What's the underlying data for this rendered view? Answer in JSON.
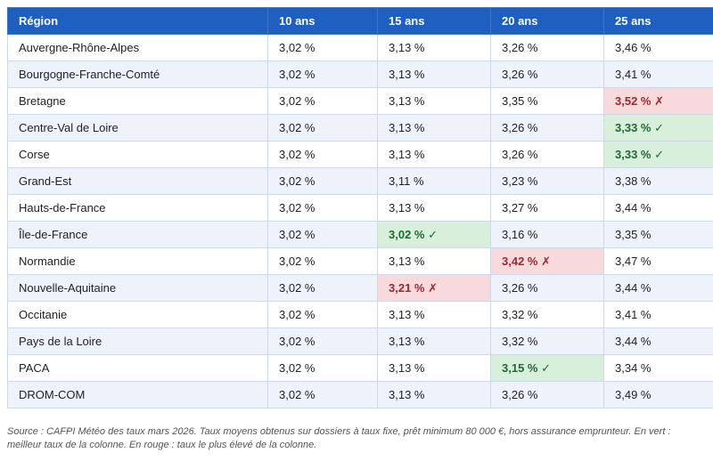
{
  "table": {
    "headers": [
      "Région",
      "10 ans",
      "15 ans",
      "20 ans",
      "25 ans"
    ],
    "rows": [
      {
        "region": "Auvergne-Rhône-Alpes",
        "cells": [
          {
            "value": "3,02 %"
          },
          {
            "value": "3,13 %"
          },
          {
            "value": "3,26 %"
          },
          {
            "value": "3,46 %"
          }
        ]
      },
      {
        "region": "Bourgogne-Franche-Comté",
        "cells": [
          {
            "value": "3,02 %"
          },
          {
            "value": "3,13 %"
          },
          {
            "value": "3,26 %"
          },
          {
            "value": "3,41 %"
          }
        ]
      },
      {
        "region": "Bretagne",
        "cells": [
          {
            "value": "3,02 %"
          },
          {
            "value": "3,13 %"
          },
          {
            "value": "3,35 %"
          },
          {
            "value": "3,52 % ✗",
            "status": "worst"
          }
        ]
      },
      {
        "region": "Centre-Val de Loire",
        "cells": [
          {
            "value": "3,02 %"
          },
          {
            "value": "3,13 %"
          },
          {
            "value": "3,26 %"
          },
          {
            "value": "3,33 % ✓",
            "status": "best"
          }
        ]
      },
      {
        "region": "Corse",
        "cells": [
          {
            "value": "3,02 %"
          },
          {
            "value": "3,13 %"
          },
          {
            "value": "3,26 %"
          },
          {
            "value": "3,33 % ✓",
            "status": "best"
          }
        ]
      },
      {
        "region": "Grand-Est",
        "cells": [
          {
            "value": "3,02 %"
          },
          {
            "value": "3,11 %"
          },
          {
            "value": "3,23 %"
          },
          {
            "value": "3,38 %"
          }
        ]
      },
      {
        "region": "Hauts-de-France",
        "cells": [
          {
            "value": "3,02 %"
          },
          {
            "value": "3,13 %"
          },
          {
            "value": "3,27 %"
          },
          {
            "value": "3,44 %"
          }
        ]
      },
      {
        "region": "Île-de-France",
        "cells": [
          {
            "value": "3,02 %"
          },
          {
            "value": "3,02 % ✓",
            "status": "best"
          },
          {
            "value": "3,16 %"
          },
          {
            "value": "3,35 %"
          }
        ]
      },
      {
        "region": "Normandie",
        "cells": [
          {
            "value": "3,02 %"
          },
          {
            "value": "3,13 %"
          },
          {
            "value": "3,42 % ✗",
            "status": "worst"
          },
          {
            "value": "3,47 %"
          }
        ]
      },
      {
        "region": "Nouvelle-Aquitaine",
        "cells": [
          {
            "value": "3,02 %"
          },
          {
            "value": "3,21 % ✗",
            "status": "worst"
          },
          {
            "value": "3,26 %"
          },
          {
            "value": "3,44 %"
          }
        ]
      },
      {
        "region": "Occitanie",
        "cells": [
          {
            "value": "3,02 %"
          },
          {
            "value": "3,13 %"
          },
          {
            "value": "3,32 %"
          },
          {
            "value": "3,41 %"
          }
        ]
      },
      {
        "region": "Pays de la Loire",
        "cells": [
          {
            "value": "3,02 %"
          },
          {
            "value": "3,13 %"
          },
          {
            "value": "3,32 %"
          },
          {
            "value": "3,44 %"
          }
        ]
      },
      {
        "region": "PACA",
        "cells": [
          {
            "value": "3,02 %"
          },
          {
            "value": "3,13 %"
          },
          {
            "value": "3,15 % ✓",
            "status": "best"
          },
          {
            "value": "3,34 %"
          }
        ]
      },
      {
        "region": "DROM-COM",
        "cells": [
          {
            "value": "3,02 %"
          },
          {
            "value": "3,13 %"
          },
          {
            "value": "3,26 %"
          },
          {
            "value": "3,49 %"
          }
        ]
      }
    ]
  },
  "footnote": "Source : CAFPI Météo des taux mars 2026. Taux moyens obtenus sur dossiers à taux fixe, prêt minimum 80 000 €, hors assurance emprunteur. En vert : meilleur taux de la colonne. En rouge : taux le plus élevé de la colonne.",
  "colors": {
    "header_bg": "#1f5fbf",
    "row_alt_bg": "#eef3fb",
    "best_bg": "#d7efdb",
    "best_text": "#1d6b31",
    "worst_bg": "#f8d9dc",
    "worst_text": "#a32632"
  }
}
